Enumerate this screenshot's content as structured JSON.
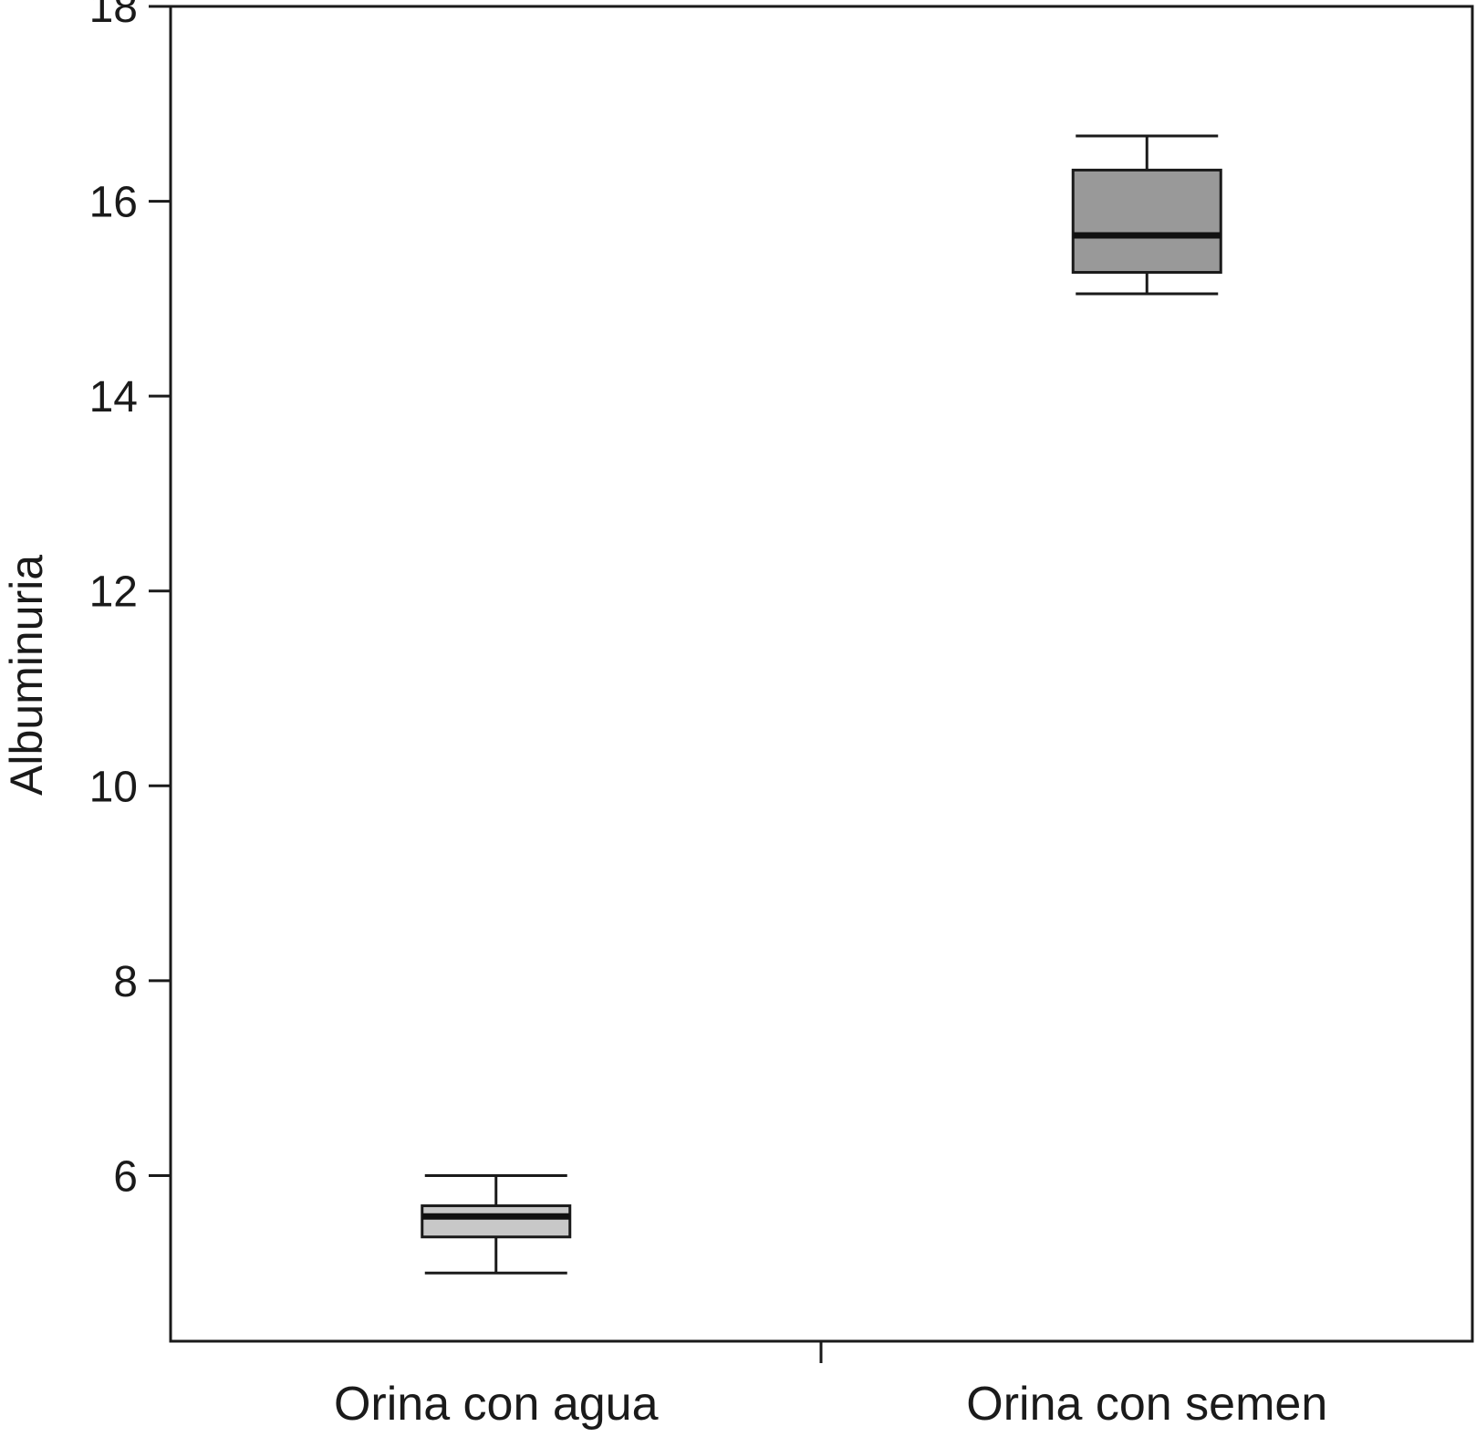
{
  "chart_data": {
    "type": "box",
    "title": "",
    "xlabel": "",
    "ylabel": "Albuminuria",
    "ylim": [
      4.3,
      18.0
    ],
    "yticks": [
      6,
      8,
      10,
      12,
      14,
      16,
      18
    ],
    "grid": false,
    "legend": "none",
    "categories": [
      "Orina con agua",
      "Orina con semen"
    ],
    "boxes": [
      {
        "category": "Orina con agua",
        "whisker_low": 5.0,
        "q1": 5.37,
        "median": 5.58,
        "q3": 5.69,
        "whisker_high": 6.0,
        "fill": "#c8c8c8"
      },
      {
        "category": "Orina con semen",
        "whisker_low": 15.05,
        "q1": 15.27,
        "median": 15.65,
        "q3": 16.32,
        "whisker_high": 16.67,
        "fill": "#999999"
      }
    ]
  }
}
